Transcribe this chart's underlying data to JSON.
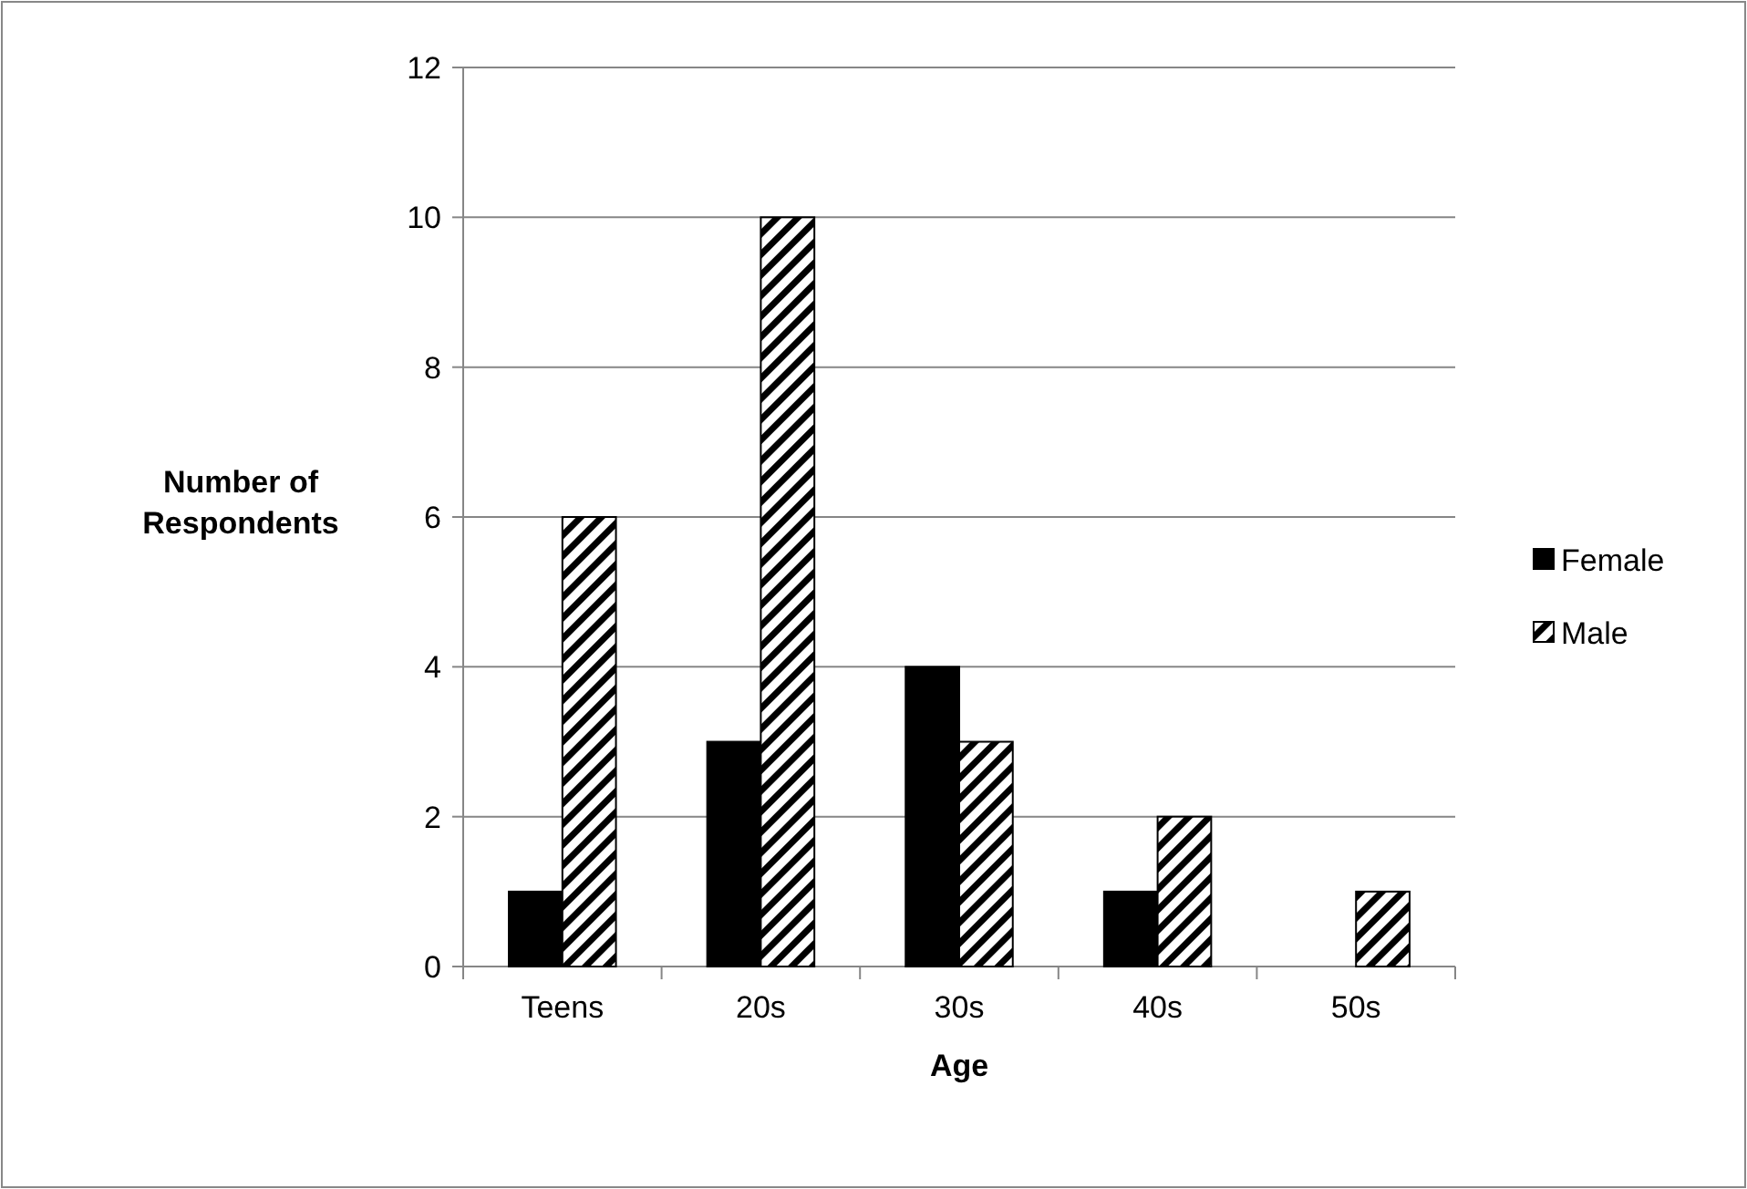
{
  "chart_data": {
    "type": "bar",
    "xlabel": "Age",
    "ylabel": "Number of Respondents",
    "categories": [
      "Teens",
      "20s",
      "30s",
      "40s",
      "50s"
    ],
    "series": [
      {
        "name": "Female",
        "color": "#000000",
        "values": [
          1,
          3,
          4,
          1,
          0
        ]
      },
      {
        "name": "Male",
        "color": "#000000",
        "values": [
          6,
          10,
          3,
          2,
          1
        ]
      }
    ],
    "ylim": [
      0,
      12
    ],
    "yticks": [
      0,
      2,
      4,
      6,
      8,
      10,
      12
    ],
    "grid": "y",
    "legend": "right"
  }
}
